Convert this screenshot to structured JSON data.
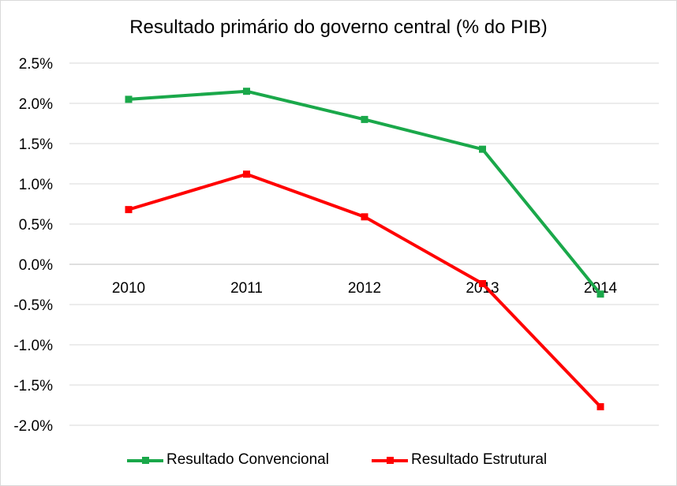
{
  "chart_data": {
    "type": "line",
    "title": "Resultado primário do governo central (% do PIB)",
    "categories": [
      "2010",
      "2011",
      "2012",
      "2013",
      "2014"
    ],
    "y_tick_labels": [
      "2.5%",
      "2.0%",
      "1.5%",
      "1.0%",
      "0.5%",
      "0.0%",
      "-0.5%",
      "-1.0%",
      "-1.5%",
      "-2.0%"
    ],
    "ylim": [
      -2.0,
      2.5
    ],
    "y_step": 0.5,
    "grid": true,
    "legend_position": "bottom",
    "series": [
      {
        "name": "Resultado Convencional",
        "color": "#1aa84a",
        "values": [
          2.05,
          2.15,
          1.8,
          1.43,
          -0.37
        ]
      },
      {
        "name": "Resultado Estrutural",
        "color": "#ff0000",
        "values": [
          0.68,
          1.12,
          0.59,
          -0.24,
          -1.77
        ]
      }
    ]
  }
}
